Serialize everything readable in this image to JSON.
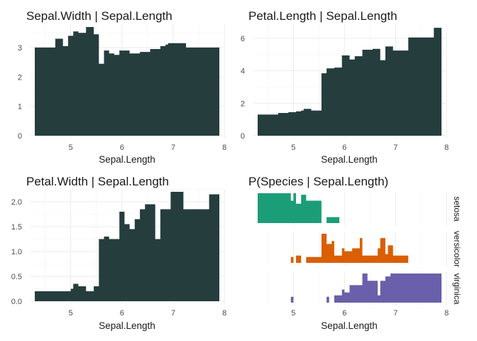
{
  "chart_data": [
    {
      "type": "bar",
      "title": "Sepal.Width | Sepal.Length",
      "xlabel": "Sepal.Length",
      "ylabel": "",
      "xlim": [
        4.3,
        7.9
      ],
      "ylim": [
        0,
        3.7
      ],
      "xticks": [
        "5",
        "6",
        "7",
        "8"
      ],
      "yticks": [
        "0",
        "1",
        "2",
        "3"
      ],
      "color": "#253d3d",
      "grid": true,
      "steps": [
        [
          4.3,
          3.0
        ],
        [
          4.7,
          3.3
        ],
        [
          4.85,
          3.05
        ],
        [
          4.95,
          3.4
        ],
        [
          5.05,
          3.55
        ],
        [
          5.15,
          3.5
        ],
        [
          5.3,
          3.7
        ],
        [
          5.45,
          3.45
        ],
        [
          5.55,
          2.45
        ],
        [
          5.65,
          2.9
        ],
        [
          5.75,
          2.8
        ],
        [
          5.85,
          2.75
        ],
        [
          5.95,
          2.9
        ],
        [
          6.15,
          2.8
        ],
        [
          6.35,
          2.85
        ],
        [
          6.55,
          2.95
        ],
        [
          6.75,
          3.05
        ],
        [
          6.85,
          3.1
        ],
        [
          6.9,
          3.15
        ],
        [
          7.25,
          3.0
        ],
        [
          7.9,
          3.0
        ]
      ]
    },
    {
      "type": "bar",
      "title": "Petal.Length | Sepal.Length",
      "xlabel": "Sepal.Length",
      "ylabel": "",
      "xlim": [
        4.3,
        7.9
      ],
      "ylim": [
        0,
        6.7
      ],
      "xticks": [
        "5",
        "6",
        "7",
        "8"
      ],
      "yticks": [
        "0",
        "2",
        "4",
        "6"
      ],
      "color": "#253d3d",
      "grid": true,
      "steps": [
        [
          4.3,
          1.3
        ],
        [
          4.7,
          1.4
        ],
        [
          4.9,
          1.45
        ],
        [
          5.05,
          1.5
        ],
        [
          5.15,
          1.55
        ],
        [
          5.2,
          1.65
        ],
        [
          5.35,
          1.55
        ],
        [
          5.55,
          3.85
        ],
        [
          5.65,
          4.15
        ],
        [
          5.8,
          4.2
        ],
        [
          5.95,
          4.95
        ],
        [
          6.1,
          4.7
        ],
        [
          6.2,
          4.9
        ],
        [
          6.35,
          5.3
        ],
        [
          6.55,
          5.35
        ],
        [
          6.7,
          4.65
        ],
        [
          6.8,
          5.5
        ],
        [
          6.95,
          5.25
        ],
        [
          7.25,
          6.05
        ],
        [
          7.75,
          6.65
        ],
        [
          7.9,
          6.65
        ]
      ]
    },
    {
      "type": "bar",
      "title": "Petal.Width | Sepal.Length",
      "xlabel": "Sepal.Length",
      "ylabel": "",
      "xlim": [
        4.3,
        7.9
      ],
      "ylim": [
        0,
        2.2
      ],
      "xticks": [
        "5",
        "6",
        "7",
        "8"
      ],
      "yticks": [
        "0.0",
        "0.5",
        "1.0",
        "1.5",
        "2.0"
      ],
      "color": "#253d3d",
      "grid": true,
      "steps": [
        [
          4.3,
          0.2
        ],
        [
          5.0,
          0.25
        ],
        [
          5.05,
          0.35
        ],
        [
          5.15,
          0.3
        ],
        [
          5.3,
          0.2
        ],
        [
          5.45,
          0.3
        ],
        [
          5.55,
          1.25
        ],
        [
          5.65,
          1.3
        ],
        [
          5.75,
          1.25
        ],
        [
          5.95,
          1.8
        ],
        [
          6.05,
          1.55
        ],
        [
          6.15,
          1.45
        ],
        [
          6.25,
          1.65
        ],
        [
          6.35,
          1.85
        ],
        [
          6.45,
          1.95
        ],
        [
          6.65,
          1.25
        ],
        [
          6.75,
          1.85
        ],
        [
          6.95,
          2.2
        ],
        [
          7.2,
          1.85
        ],
        [
          7.7,
          2.15
        ],
        [
          7.9,
          2.15
        ]
      ]
    },
    {
      "type": "bar",
      "title": "P(Species | Sepal.Length)",
      "xlabel": "Sepal.Length",
      "ylabel": "",
      "xlim": [
        4.3,
        7.9
      ],
      "xticks": [
        "5",
        "6",
        "7",
        "8"
      ],
      "facets": [
        {
          "label": "setosa",
          "color": "#1b9e77",
          "steps": [
            [
              4.3,
              1.0
            ],
            [
              4.95,
              0.75
            ],
            [
              5.0,
              1.0
            ],
            [
              5.05,
              0.65
            ],
            [
              5.15,
              0.95
            ],
            [
              5.25,
              0.75
            ],
            [
              5.55,
              0.0
            ],
            [
              5.65,
              0.2
            ],
            [
              5.9,
              0.0
            ],
            [
              7.9,
              0.0
            ]
          ]
        },
        {
          "label": "versicolor",
          "color": "#d95f02",
          "steps": [
            [
              4.3,
              0.0
            ],
            [
              4.95,
              0.2
            ],
            [
              5.0,
              0.0
            ],
            [
              5.05,
              0.25
            ],
            [
              5.15,
              0.0
            ],
            [
              5.25,
              0.2
            ],
            [
              5.55,
              1.0
            ],
            [
              5.65,
              0.65
            ],
            [
              5.75,
              0.75
            ],
            [
              5.8,
              0.25
            ],
            [
              5.95,
              0.5
            ],
            [
              6.0,
              0.4
            ],
            [
              6.15,
              0.5
            ],
            [
              6.3,
              0.85
            ],
            [
              6.35,
              0.25
            ],
            [
              6.65,
              0.5
            ],
            [
              6.7,
              0.85
            ],
            [
              6.8,
              0.3
            ],
            [
              6.85,
              0.6
            ],
            [
              6.95,
              0.25
            ],
            [
              7.25,
              0.0
            ],
            [
              7.9,
              0.0
            ]
          ]
        },
        {
          "label": "virginica",
          "color": "#6a5fab",
          "steps": [
            [
              4.3,
              0.0
            ],
            [
              4.95,
              0.2
            ],
            [
              5.0,
              0.0
            ],
            [
              5.65,
              0.2
            ],
            [
              5.7,
              0.0
            ],
            [
              5.8,
              0.25
            ],
            [
              5.95,
              0.45
            ],
            [
              6.0,
              0.35
            ],
            [
              6.1,
              0.6
            ],
            [
              6.35,
              1.0
            ],
            [
              6.45,
              0.75
            ],
            [
              6.65,
              0.25
            ],
            [
              6.7,
              0.75
            ],
            [
              6.8,
              0.9
            ],
            [
              6.9,
              1.0
            ],
            [
              7.25,
              1.0
            ],
            [
              7.9,
              1.0
            ]
          ]
        }
      ]
    }
  ]
}
